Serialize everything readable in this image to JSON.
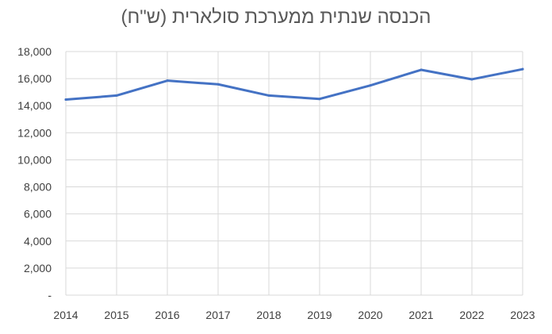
{
  "chart_data": {
    "type": "line",
    "title": "הכנסה שנתית ממערכת סולארית (ש\"ח)",
    "x": [
      "2014",
      "2015",
      "2016",
      "2017",
      "2018",
      "2019",
      "2020",
      "2021",
      "2022",
      "2023"
    ],
    "series": [
      {
        "values": [
          14450,
          14750,
          15850,
          15580,
          14750,
          14500,
          15500,
          16650,
          15950,
          16700
        ]
      }
    ],
    "ylim": [
      0,
      18000
    ],
    "yticks": [
      {
        "value": 0,
        "label": "-"
      },
      {
        "value": 2000,
        "label": "2,000"
      },
      {
        "value": 4000,
        "label": "4,000"
      },
      {
        "value": 6000,
        "label": "6,000"
      },
      {
        "value": 8000,
        "label": "8,000"
      },
      {
        "value": 10000,
        "label": "10,000"
      },
      {
        "value": 12000,
        "label": "12,000"
      },
      {
        "value": 14000,
        "label": "14,000"
      },
      {
        "value": 16000,
        "label": "16,000"
      },
      {
        "value": 18000,
        "label": "18,000"
      }
    ],
    "grid": true,
    "colors": {
      "line": "#4472C4",
      "grid": "#D9D9D9",
      "text": "#404040",
      "title": "#595959"
    }
  }
}
